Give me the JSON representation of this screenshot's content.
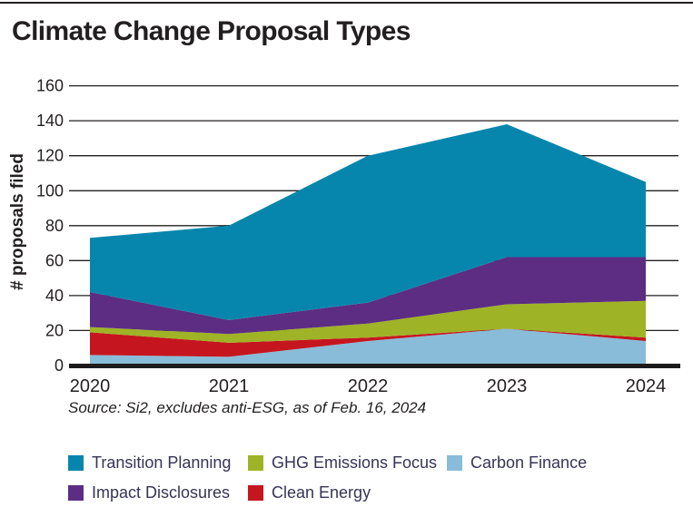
{
  "title": "Climate Change Proposal Types",
  "source_note": "Source: Si2, excludes anti-ESG, as of Feb. 16, 2024",
  "colors": {
    "text": "#231f20",
    "legend_text": "#363457",
    "gridline": "#231f20",
    "axis_bar": "#1b1b1b"
  },
  "chart_data": {
    "type": "area",
    "stacked": true,
    "title": "Climate Change Proposal Types",
    "xlabel": "",
    "ylabel": "# proposals filed",
    "categories": [
      "2020",
      "2021",
      "2022",
      "2023",
      "2024"
    ],
    "series": [
      {
        "name": "Carbon Finance",
        "color": "#89bcd8",
        "values": [
          6,
          5,
          14,
          21,
          14
        ]
      },
      {
        "name": "Clean Energy",
        "color": "#c5161f",
        "values": [
          13,
          8,
          2,
          0,
          2
        ]
      },
      {
        "name": "GHG Emissions Focus",
        "color": "#9fb326",
        "values": [
          3,
          5,
          8,
          14,
          21
        ]
      },
      {
        "name": "Impact Disclosures",
        "color": "#5c2d83",
        "values": [
          20,
          8,
          12,
          27,
          25
        ]
      },
      {
        "name": "Transition Planning",
        "color": "#0786ad",
        "values": [
          31,
          54,
          84,
          76,
          43
        ]
      }
    ],
    "stack_totals": [
      73,
      80,
      120,
      138,
      105
    ],
    "legend_order": [
      "Transition Planning",
      "GHG Emissions Focus",
      "Carbon Finance",
      "Impact Disclosures",
      "Clean Energy"
    ],
    "ylim": [
      0,
      160
    ],
    "ytick_step": 20,
    "grid": true,
    "legend_position": "bottom"
  }
}
